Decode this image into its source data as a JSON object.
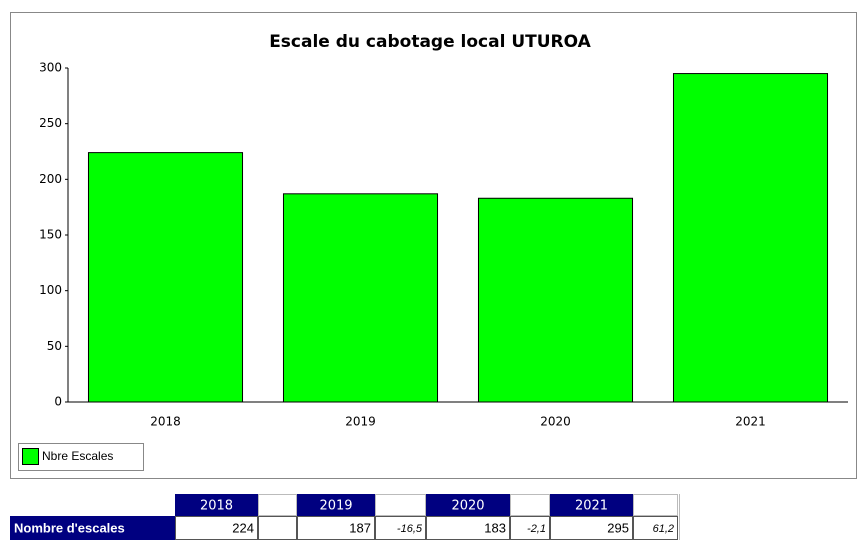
{
  "chart_data": {
    "type": "bar",
    "title": "Escale du cabotage local UTUROA",
    "categories": [
      "2018",
      "2019",
      "2020",
      "2021"
    ],
    "series": [
      {
        "name": "Nbre Escales",
        "color": "#00ff00",
        "values": [
          224,
          187,
          183,
          295
        ]
      }
    ],
    "ylim": [
      0,
      300
    ],
    "yticks": [
      0,
      50,
      100,
      150,
      200,
      250,
      300
    ],
    "legend": "bottom-left"
  },
  "table": {
    "header": [
      "2018",
      "2019",
      "2020",
      "2021"
    ],
    "row": {
      "label": "Nombre d'escales",
      "values": [
        "224",
        "187",
        "183",
        "295"
      ],
      "changes": [
        "-16,5",
        "-2,1",
        "61,2"
      ]
    }
  }
}
